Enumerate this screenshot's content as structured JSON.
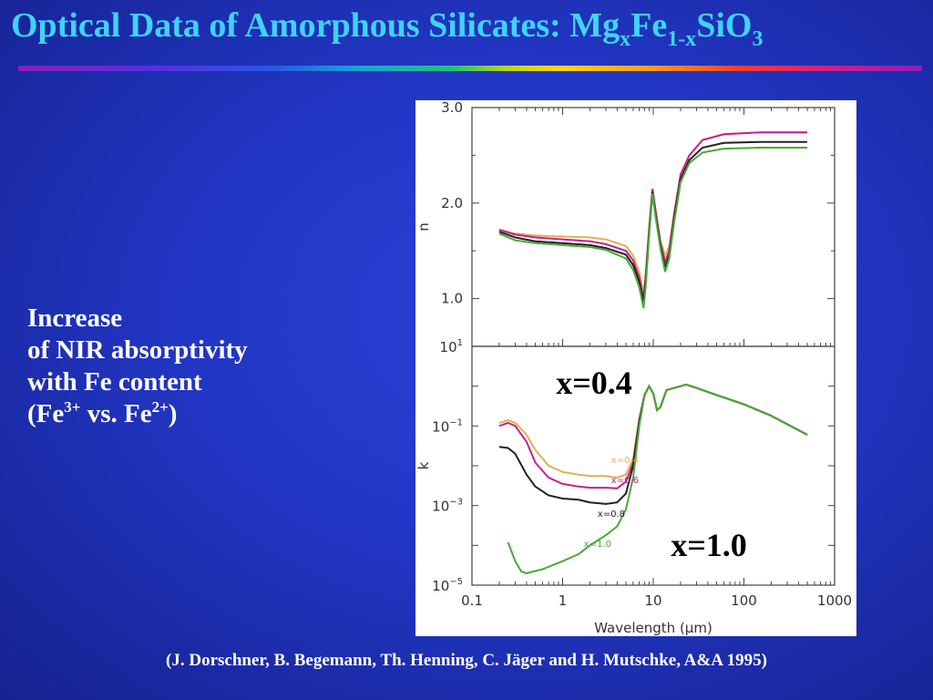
{
  "title": {
    "text": "Optical Data of Amorphous Silicates: Mg",
    "sub1": "x",
    "mid": "Fe",
    "sub2": "1-x",
    "end": "SiO",
    "sub3": "3"
  },
  "body": {
    "line1": "Increase",
    "line2": "of NIR absorptivity",
    "line3": "with Fe content",
    "line4_a": "(Fe",
    "line4_sup1": "3+",
    "line4_b": " vs. Fe",
    "line4_sup2": "2+",
    "line4_c": ")"
  },
  "citation": "(J. Dorschner, B. Begemann, Th. Henning, C. Jäger and H. Mutschke, A&A 1995)",
  "colors": {
    "background": "#2236c4",
    "title": "#3fd3f4",
    "x04": "#e0b050",
    "x06": "#c81e8c",
    "x08": "#222222",
    "x10": "#4aa83a"
  },
  "chart_data": [
    {
      "type": "line",
      "panel": "top",
      "ylabel": "n",
      "xlabel": "",
      "xscale": "log",
      "xlim": [
        0.1,
        1000
      ],
      "ylim": [
        0.5,
        3.0
      ],
      "yticks": [
        "1.0",
        "2.0",
        "3.0"
      ],
      "series": [
        {
          "name": "x=0.4",
          "color": "#e0b050",
          "points": [
            [
              0.2,
              1.72
            ],
            [
              0.3,
              1.68
            ],
            [
              0.5,
              1.66
            ],
            [
              1,
              1.65
            ],
            [
              2,
              1.64
            ],
            [
              3,
              1.62
            ],
            [
              5,
              1.55
            ],
            [
              6,
              1.45
            ],
            [
              7,
              1.28
            ],
            [
              7.8,
              1.05
            ],
            [
              8.3,
              1.3
            ],
            [
              9,
              1.75
            ],
            [
              9.8,
              2.13
            ],
            [
              10.5,
              1.95
            ],
            [
              12,
              1.6
            ],
            [
              13.5,
              1.45
            ],
            [
              15,
              1.55
            ],
            [
              17,
              1.9
            ],
            [
              20,
              2.3
            ],
            [
              25,
              2.5
            ],
            [
              35,
              2.66
            ],
            [
              60,
              2.72
            ],
            [
              150,
              2.74
            ],
            [
              500,
              2.74
            ]
          ]
        },
        {
          "name": "x=0.6",
          "color": "#c81e8c",
          "points": [
            [
              0.2,
              1.72
            ],
            [
              0.3,
              1.67
            ],
            [
              0.5,
              1.64
            ],
            [
              1,
              1.62
            ],
            [
              2,
              1.6
            ],
            [
              3,
              1.57
            ],
            [
              5,
              1.5
            ],
            [
              6,
              1.4
            ],
            [
              7,
              1.22
            ],
            [
              7.8,
              1.0
            ],
            [
              8.3,
              1.25
            ],
            [
              9,
              1.72
            ],
            [
              9.8,
              2.15
            ],
            [
              10.5,
              1.95
            ],
            [
              12,
              1.58
            ],
            [
              13.5,
              1.38
            ],
            [
              15,
              1.5
            ],
            [
              17,
              1.88
            ],
            [
              20,
              2.3
            ],
            [
              25,
              2.5
            ],
            [
              35,
              2.66
            ],
            [
              60,
              2.72
            ],
            [
              150,
              2.74
            ],
            [
              500,
              2.74
            ]
          ]
        },
        {
          "name": "x=0.8",
          "color": "#222222",
          "points": [
            [
              0.2,
              1.7
            ],
            [
              0.3,
              1.64
            ],
            [
              0.5,
              1.6
            ],
            [
              1,
              1.58
            ],
            [
              2,
              1.56
            ],
            [
              3,
              1.53
            ],
            [
              5,
              1.46
            ],
            [
              6,
              1.35
            ],
            [
              7,
              1.18
            ],
            [
              7.8,
              0.96
            ],
            [
              8.3,
              1.2
            ],
            [
              9,
              1.68
            ],
            [
              9.8,
              2.12
            ],
            [
              10.5,
              1.9
            ],
            [
              12,
              1.55
            ],
            [
              13.5,
              1.32
            ],
            [
              15,
              1.45
            ],
            [
              17,
              1.84
            ],
            [
              20,
              2.25
            ],
            [
              25,
              2.45
            ],
            [
              35,
              2.58
            ],
            [
              60,
              2.63
            ],
            [
              150,
              2.64
            ],
            [
              500,
              2.64
            ]
          ]
        },
        {
          "name": "x=1.0",
          "color": "#4aa83a",
          "points": [
            [
              0.2,
              1.68
            ],
            [
              0.3,
              1.61
            ],
            [
              0.5,
              1.58
            ],
            [
              1,
              1.56
            ],
            [
              2,
              1.54
            ],
            [
              3,
              1.51
            ],
            [
              5,
              1.42
            ],
            [
              6,
              1.3
            ],
            [
              7,
              1.12
            ],
            [
              7.8,
              0.9
            ],
            [
              8.3,
              1.15
            ],
            [
              9,
              1.65
            ],
            [
              9.8,
              2.1
            ],
            [
              10.5,
              1.88
            ],
            [
              12,
              1.52
            ],
            [
              13.5,
              1.28
            ],
            [
              15,
              1.42
            ],
            [
              17,
              1.8
            ],
            [
              20,
              2.22
            ],
            [
              25,
              2.42
            ],
            [
              35,
              2.53
            ],
            [
              60,
              2.57
            ],
            [
              150,
              2.58
            ],
            [
              500,
              2.58
            ]
          ]
        }
      ]
    },
    {
      "type": "line",
      "panel": "bottom",
      "ylabel": "k",
      "xlabel": "Wavelength  (µm)",
      "xscale": "log",
      "yscale": "log",
      "xlim": [
        0.1,
        1000
      ],
      "ylim": [
        1e-05,
        10
      ],
      "xticks": [
        "0.1",
        "1",
        "10",
        "100",
        "1000"
      ],
      "series": [
        {
          "name": "x=0.4",
          "label": "x=0.4",
          "color": "#e0b050",
          "points": [
            [
              0.2,
              0.12
            ],
            [
              0.25,
              0.14
            ],
            [
              0.3,
              0.12
            ],
            [
              0.4,
              0.06
            ],
            [
              0.5,
              0.025
            ],
            [
              0.7,
              0.01
            ],
            [
              1,
              0.007
            ],
            [
              1.5,
              0.006
            ],
            [
              2,
              0.0055
            ],
            [
              3,
              0.0055
            ],
            [
              4,
              0.005
            ],
            [
              5,
              0.006
            ],
            [
              6,
              0.015
            ],
            [
              7,
              0.15
            ],
            [
              8,
              0.6
            ],
            [
              9,
              1.0
            ],
            [
              10,
              0.65
            ],
            [
              11,
              0.25
            ],
            [
              12,
              0.3
            ],
            [
              14,
              0.8
            ],
            [
              17,
              0.9
            ],
            [
              20,
              1.0
            ],
            [
              23,
              1.1
            ],
            [
              30,
              0.9
            ],
            [
              50,
              0.6
            ],
            [
              100,
              0.35
            ],
            [
              200,
              0.18
            ],
            [
              500,
              0.06
            ]
          ]
        },
        {
          "name": "x=0.6",
          "label": "x=0.6",
          "color": "#c81e8c",
          "points": [
            [
              0.2,
              0.1
            ],
            [
              0.25,
              0.12
            ],
            [
              0.3,
              0.1
            ],
            [
              0.4,
              0.04
            ],
            [
              0.5,
              0.012
            ],
            [
              0.7,
              0.005
            ],
            [
              1,
              0.0035
            ],
            [
              1.5,
              0.003
            ],
            [
              2,
              0.0028
            ],
            [
              3,
              0.0028
            ],
            [
              4,
              0.0027
            ],
            [
              5,
              0.004
            ],
            [
              6,
              0.012
            ],
            [
              7,
              0.14
            ],
            [
              8,
              0.6
            ],
            [
              9,
              1.0
            ],
            [
              10,
              0.65
            ],
            [
              11,
              0.25
            ],
            [
              12,
              0.3
            ],
            [
              14,
              0.8
            ],
            [
              17,
              0.9
            ],
            [
              20,
              1.0
            ],
            [
              23,
              1.1
            ],
            [
              30,
              0.9
            ],
            [
              50,
              0.6
            ],
            [
              100,
              0.35
            ],
            [
              200,
              0.18
            ],
            [
              500,
              0.06
            ]
          ]
        },
        {
          "name": "x=0.8",
          "label": "x=0.8",
          "color": "#222222",
          "points": [
            [
              0.2,
              0.03
            ],
            [
              0.25,
              0.028
            ],
            [
              0.3,
              0.02
            ],
            [
              0.4,
              0.006
            ],
            [
              0.5,
              0.003
            ],
            [
              0.7,
              0.0018
            ],
            [
              1,
              0.0015
            ],
            [
              1.5,
              0.0014
            ],
            [
              2,
              0.0012
            ],
            [
              3,
              0.0011
            ],
            [
              4,
              0.0012
            ],
            [
              5,
              0.002
            ],
            [
              6,
              0.01
            ],
            [
              7,
              0.13
            ],
            [
              8,
              0.6
            ],
            [
              9,
              1.0
            ],
            [
              10,
              0.65
            ],
            [
              11,
              0.25
            ],
            [
              12,
              0.3
            ],
            [
              14,
              0.8
            ],
            [
              17,
              0.9
            ],
            [
              20,
              1.0
            ],
            [
              23,
              1.1
            ],
            [
              30,
              0.9
            ],
            [
              50,
              0.6
            ],
            [
              100,
              0.35
            ],
            [
              200,
              0.18
            ],
            [
              500,
              0.06
            ]
          ]
        },
        {
          "name": "x=1.0",
          "label": "x=1.0",
          "color": "#4aa83a",
          "points": [
            [
              0.25,
              0.00012
            ],
            [
              0.3,
              4e-05
            ],
            [
              0.35,
              2.2e-05
            ],
            [
              0.4,
              2e-05
            ],
            [
              0.6,
              2.5e-05
            ],
            [
              1,
              4e-05
            ],
            [
              1.5,
              6e-05
            ],
            [
              2,
              0.0001
            ],
            [
              3,
              0.00018
            ],
            [
              4,
              0.0003
            ],
            [
              5,
              0.0008
            ],
            [
              6,
              0.005
            ],
            [
              7,
              0.1
            ],
            [
              8,
              0.6
            ],
            [
              9,
              1.0
            ],
            [
              10,
              0.65
            ],
            [
              11,
              0.25
            ],
            [
              12,
              0.3
            ],
            [
              14,
              0.8
            ],
            [
              17,
              0.9
            ],
            [
              20,
              1.0
            ],
            [
              23,
              1.1
            ],
            [
              30,
              0.9
            ],
            [
              50,
              0.6
            ],
            [
              100,
              0.35
            ],
            [
              200,
              0.18
            ],
            [
              500,
              0.06
            ]
          ]
        }
      ],
      "callouts": [
        "x=0.4",
        "x=1.0"
      ]
    }
  ]
}
